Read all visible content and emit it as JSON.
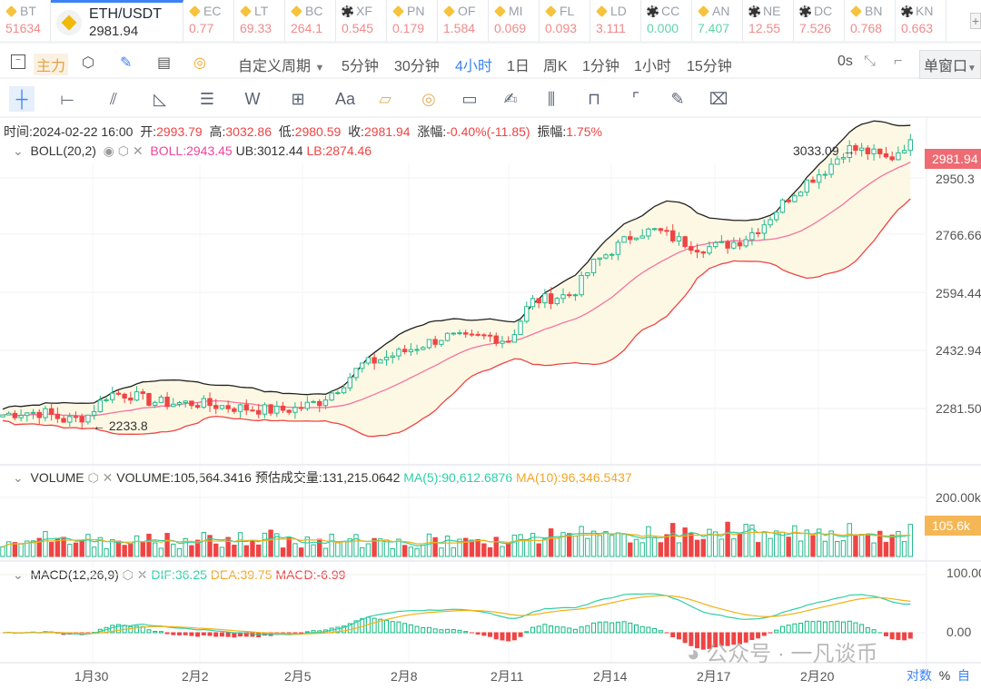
{
  "tickers": [
    {
      "sym": "BT",
      "price": "51634",
      "coin": "b",
      "color": "#f08a8a"
    },
    {
      "sym": "ETH/USDT",
      "price": "2981.94",
      "main": true
    },
    {
      "sym": "EC",
      "price": "0.77",
      "coin": "b",
      "color": "#f08a8a"
    },
    {
      "sym": "LT",
      "price": "69.33",
      "coin": "b",
      "color": "#f08a8a"
    },
    {
      "sym": "BC",
      "price": "264.1",
      "coin": "b",
      "color": "#f08a8a"
    },
    {
      "sym": "XF",
      "price": "0.545",
      "coin": "o",
      "color": "#f08a8a"
    },
    {
      "sym": "PN",
      "price": "0.179",
      "coin": "b",
      "color": "#f08a8a"
    },
    {
      "sym": "OF",
      "price": "1.584",
      "coin": "b",
      "color": "#f08a8a"
    },
    {
      "sym": "MI",
      "price": "0.069",
      "coin": "b",
      "color": "#f08a8a"
    },
    {
      "sym": "FL",
      "price": "0.093",
      "coin": "b",
      "color": "#f08a8a"
    },
    {
      "sym": "LD",
      "price": "3.111",
      "coin": "b",
      "color": "#f08a8a"
    },
    {
      "sym": "CC",
      "price": "0.000",
      "coin": "o",
      "color": "#5fd3a8"
    },
    {
      "sym": "AN",
      "price": "7.407",
      "coin": "b",
      "color": "#5fd3a8"
    },
    {
      "sym": "NE",
      "price": "12.55",
      "coin": "o",
      "color": "#f08a8a"
    },
    {
      "sym": "DC",
      "price": "7.526",
      "coin": "o",
      "color": "#f08a8a"
    },
    {
      "sym": "BN",
      "price": "0.768",
      "coin": "b",
      "color": "#f08a8a"
    },
    {
      "sym": "KN",
      "price": "0.663",
      "coin": "o",
      "color": "#f08a8a"
    }
  ],
  "toolbar": {
    "main_force": "主力",
    "custom_period": "自定义周期",
    "periods": [
      "5分钟",
      "30分钟",
      "4小时",
      "1日",
      "周K",
      "1分钟",
      "1小时",
      "15分钟"
    ],
    "active_period": "4小时",
    "countdown": "0s",
    "window_mode": "单窗口"
  },
  "drawing_tools": [
    "crosshair",
    "horizontal-line",
    "parallel-channel",
    "triangle",
    "multi-line",
    "wave",
    "rect-add",
    "Aa",
    "ruler-range",
    "ruler-circle",
    "ruler",
    "pen",
    "candle-pattern",
    "lock",
    "bookmark",
    "note",
    "trash"
  ],
  "info": {
    "time_label": "时间:",
    "time": "2024-02-22 16:00",
    "open_label": "开:",
    "open": "2993.79",
    "high_label": "高:",
    "high": "3032.86",
    "low_label": "低:",
    "low": "2980.59",
    "close_label": "收:",
    "close": "2981.94",
    "change_label": "涨幅:",
    "change": "-0.40%(-11.85)",
    "amp_label": "振幅:",
    "amp": "1.75%"
  },
  "boll": {
    "name": "BOLL(20,2)",
    "boll": "BOLL:2943.45",
    "ub": "UB:3012.44",
    "lb": "LB:2874.46"
  },
  "volume": {
    "name": "VOLUME",
    "vol": "VOLUME:105,564.3416",
    "est": "预估成交量:131,215.0642",
    "ma5": "MA(5):90,612.6876",
    "ma10": "MA(10):96,346.5437"
  },
  "macd": {
    "name": "MACD(12,26,9)",
    "dif": "DIF:36.25",
    "dea": "DEA:39.75",
    "macd": "MACD:-6.99"
  },
  "price_axis": [
    "2950.3",
    "2766.66",
    "2594.44",
    "2432.94",
    "2281.50"
  ],
  "current_price": "2981.94",
  "high_mark": "3033.09",
  "low_mark": "2233.8",
  "vol_axis": [
    "200.00k"
  ],
  "vol_current": "105.6k",
  "macd_axis": [
    "100.00",
    "0.00"
  ],
  "x_labels": [
    "1月30",
    "2月2",
    "2月5",
    "2月8",
    "2月11",
    "2月14",
    "2月17",
    "2月20"
  ],
  "bottom": {
    "log": "对数",
    "pct": "%",
    "auto": "自"
  },
  "watermark": "公众号 · 一凡谈币",
  "colors": {
    "up": "#26b98b",
    "down": "#ef4444",
    "accent": "#3b82f6",
    "ma5": "#2ecfa5",
    "ma10": "#f5b014"
  },
  "chart_data": {
    "type": "candlestick",
    "price_anchors": [
      2265,
      2272,
      2270,
      2250,
      2262,
      2320,
      2318,
      2300,
      2295,
      2296,
      2290,
      2284,
      2280,
      2276,
      2282,
      2300,
      2340,
      2395,
      2412,
      2430,
      2450,
      2470,
      2462,
      2470,
      2458,
      2560,
      2570,
      2580,
      2660,
      2700,
      2740,
      2745,
      2720,
      2700,
      2705,
      2720,
      2760,
      2820,
      2870,
      2905,
      2960,
      2950,
      2930,
      2982
    ],
    "ylim": [
      2200,
      3060
    ]
  }
}
